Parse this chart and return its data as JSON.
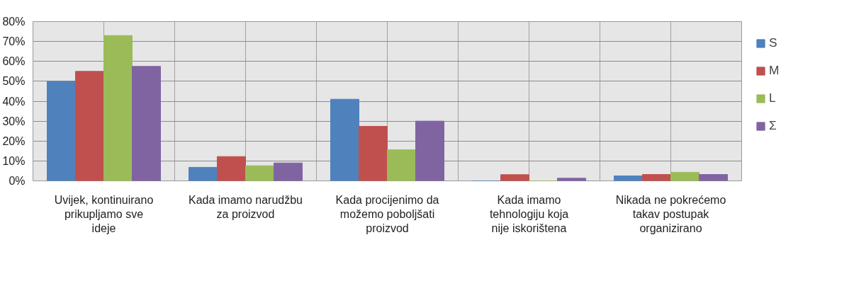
{
  "chart_data": {
    "type": "bar",
    "categories": [
      "Uvijek, kontinuirano prikupljamo sve ideje",
      "Kada imamo narudžbu za proizvod",
      "Kada procijenimo da možemo poboljšati proizvod",
      "Kada imamo tehnologiju koja nije iskorištena",
      "Nikada ne pokrećemo takav postupak organizirano"
    ],
    "series": [
      {
        "name": "S",
        "color": "#4f81bd",
        "values": [
          50,
          6.8,
          41,
          0,
          2.5
        ]
      },
      {
        "name": "M",
        "color": "#c0504d",
        "values": [
          55,
          12.2,
          27.4,
          3.1,
          3.2
        ]
      },
      {
        "name": "L",
        "color": "#9bbb59",
        "values": [
          73,
          7.6,
          15.6,
          0,
          4.3
        ]
      },
      {
        "name": "Σ",
        "color": "#8064a2",
        "values": [
          57.5,
          9,
          30,
          1.3,
          3.2
        ]
      }
    ],
    "ylim": [
      0,
      80
    ],
    "yticks": [
      {
        "value": 0,
        "label": "0%"
      },
      {
        "value": 10,
        "label": "10%"
      },
      {
        "value": 20,
        "label": "20%"
      },
      {
        "value": 30,
        "label": "30%"
      },
      {
        "value": 40,
        "label": "40%"
      },
      {
        "value": 50,
        "label": "50%"
      },
      {
        "value": 60,
        "label": "60%"
      },
      {
        "value": 70,
        "label": "70%"
      },
      {
        "value": 80,
        "label": "80%"
      }
    ],
    "grid": true,
    "legend": "right"
  }
}
